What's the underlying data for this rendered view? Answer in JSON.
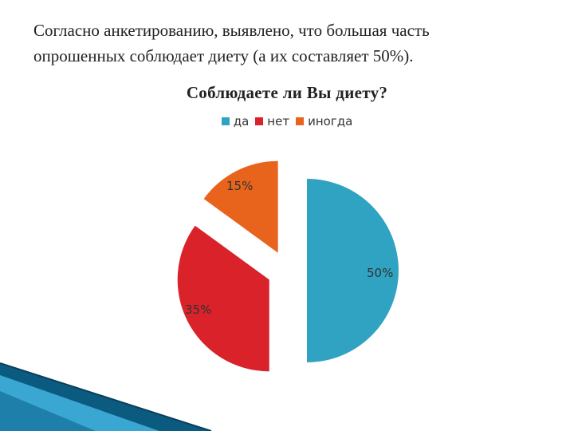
{
  "intro": {
    "line1": "Согласно анкетированию, выявлено, что большая часть",
    "line2": "опрошенных соблюдает диету (а их составляет 50%)."
  },
  "chart_data": {
    "type": "pie",
    "title": "Соблюдаете ли Вы диету?",
    "legend_position": "top",
    "exploded": true,
    "slices": [
      {
        "name": "да",
        "value": 50,
        "label": "50%",
        "color": "#2fa3c1"
      },
      {
        "name": "нет",
        "value": 35,
        "label": "35%",
        "color": "#d9222a"
      },
      {
        "name": "иногда",
        "value": 15,
        "label": "15%",
        "color": "#e8641c"
      }
    ]
  },
  "decor_colors": {
    "accent_dark": "#0a4a6a",
    "accent_light": "#4fb6dc"
  }
}
